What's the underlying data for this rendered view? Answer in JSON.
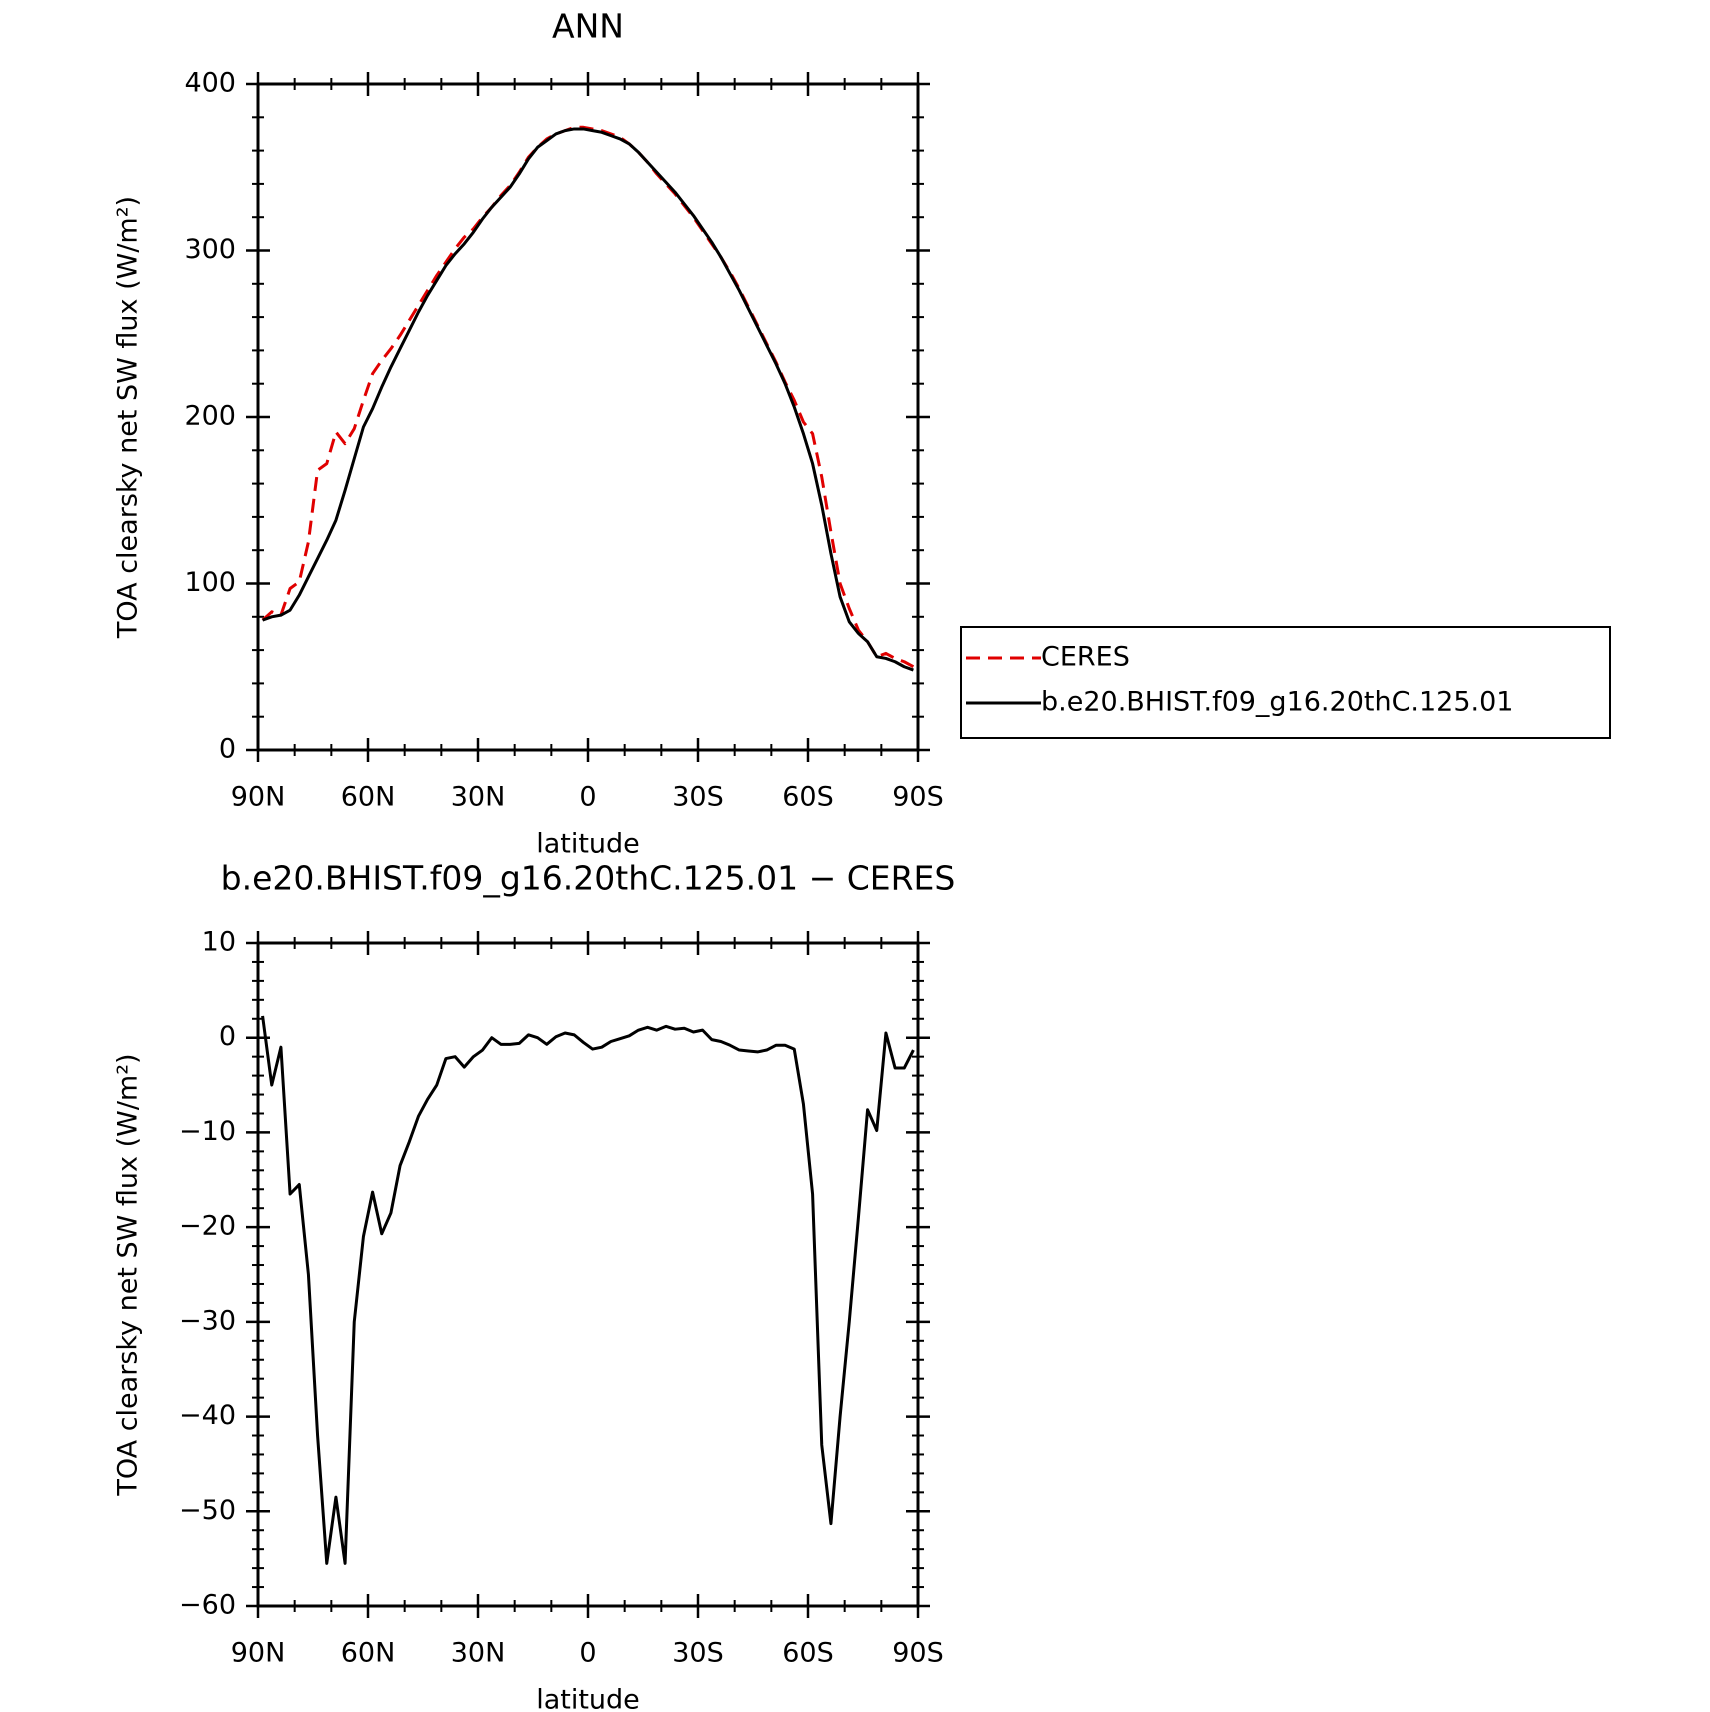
{
  "chart_data": [
    {
      "type": "line",
      "title": "ANN",
      "xlabel": "latitude",
      "ylabel": "TOA clearsky net SW flux (W/m²)",
      "x": [
        88.75,
        86.25,
        83.75,
        81.25,
        78.75,
        76.25,
        73.75,
        71.25,
        68.75,
        66.25,
        63.75,
        61.25,
        58.75,
        56.25,
        53.75,
        51.25,
        48.75,
        46.25,
        43.75,
        41.25,
        38.75,
        36.25,
        33.75,
        31.25,
        28.75,
        26.25,
        23.75,
        21.25,
        18.75,
        16.25,
        13.75,
        11.25,
        8.75,
        6.25,
        3.75,
        1.25,
        -1.25,
        -3.75,
        -6.25,
        -8.75,
        -11.25,
        -13.75,
        -16.25,
        -18.75,
        -21.25,
        -23.75,
        -26.25,
        -28.75,
        -31.25,
        -33.75,
        -36.25,
        -38.75,
        -41.25,
        -43.75,
        -46.25,
        -48.75,
        -51.25,
        -53.75,
        -56.25,
        -58.75,
        -61.25,
        -63.75,
        -66.25,
        -68.75,
        -71.25,
        -73.75,
        -76.25,
        -78.75,
        -81.25,
        -83.75,
        -86.25,
        -88.75
      ],
      "series": [
        {
          "name": "CERES",
          "color": "#e00000",
          "dash": "dashed",
          "values": [
            78,
            83,
            81,
            97,
            101,
            125,
            168,
            172,
            191,
            184,
            193,
            210,
            226,
            234,
            241,
            249,
            258,
            267,
            276,
            285,
            293,
            301,
            308,
            313,
            320,
            326,
            333,
            339,
            347,
            356,
            362,
            367,
            370,
            372,
            374,
            374,
            373,
            372,
            370,
            368,
            364,
            359,
            353,
            346,
            340,
            334,
            327,
            320,
            312,
            304,
            296,
            287,
            277,
            266,
            255,
            244,
            233,
            221,
            210,
            197,
            190,
            164,
            131,
            100,
            85,
            72,
            65,
            56,
            58,
            55,
            53,
            50
          ]
        },
        {
          "name": "b.e20.BHIST.f09_g16.20thC.125.01",
          "color": "#000000",
          "dash": "solid",
          "values": [
            78,
            80,
            81,
            84,
            93,
            104,
            115,
            126,
            138,
            156,
            175,
            194,
            205,
            218,
            230,
            241,
            252,
            263,
            273,
            282,
            291,
            298,
            304,
            311,
            319,
            326,
            332,
            338,
            346,
            355,
            362,
            366,
            370,
            372,
            373,
            373,
            372,
            371,
            369,
            367,
            364,
            359,
            353,
            347,
            341,
            335,
            328,
            321,
            313,
            305,
            296,
            286,
            276,
            265,
            254,
            243,
            232,
            220,
            206,
            190,
            172,
            147,
            118,
            92,
            77,
            70,
            65,
            56,
            55,
            53,
            50,
            48
          ]
        }
      ],
      "xlim": [
        90,
        -90
      ],
      "xticks": [
        {
          "value": 90,
          "label": "90N"
        },
        {
          "value": 60,
          "label": "60N"
        },
        {
          "value": 30,
          "label": "30N"
        },
        0,
        {
          "value": -30,
          "label": "30S"
        },
        {
          "value": -60,
          "label": "60S"
        },
        {
          "value": -90,
          "label": "90S"
        }
      ],
      "ylim": [
        0,
        400
      ],
      "yticks": [
        0,
        100,
        200,
        300,
        400
      ],
      "x_minor_divisions": 3,
      "y_minor_divisions": 5,
      "legend": "outside-right"
    },
    {
      "type": "line",
      "title": "b.e20.BHIST.f09_g16.20thC.125.01 − CERES",
      "xlabel": "latitude",
      "ylabel": "TOA clearsky net SW flux (W/m²)",
      "x": [
        88.75,
        86.25,
        83.75,
        81.25,
        78.75,
        76.25,
        73.75,
        71.25,
        68.75,
        66.25,
        63.75,
        61.25,
        58.75,
        56.25,
        53.75,
        51.25,
        48.75,
        46.25,
        43.75,
        41.25,
        38.75,
        36.25,
        33.75,
        31.25,
        28.75,
        26.25,
        23.75,
        21.25,
        18.75,
        16.25,
        13.75,
        11.25,
        8.75,
        6.25,
        3.75,
        1.25,
        -1.25,
        -3.75,
        -6.25,
        -8.75,
        -11.25,
        -13.75,
        -16.25,
        -18.75,
        -21.25,
        -23.75,
        -26.25,
        -28.75,
        -31.25,
        -33.75,
        -36.25,
        -38.75,
        -41.25,
        -43.75,
        -46.25,
        -48.75,
        -51.25,
        -53.75,
        -56.25,
        -58.75,
        -61.25,
        -63.75,
        -66.25,
        -68.75,
        -71.25,
        -73.75,
        -76.25,
        -78.75,
        -81.25,
        -83.75,
        -86.25,
        -88.75
      ],
      "series": [
        {
          "color": "#000000",
          "dash": "solid",
          "values": [
            2.3,
            -5,
            -1,
            -16.5,
            -15.5,
            -25,
            -42,
            -55.5,
            -48.5,
            -55.5,
            -30,
            -21,
            -16.3,
            -20.7,
            -18.5,
            -13.5,
            -11,
            -8.3,
            -6.5,
            -5,
            -2.2,
            -2,
            -3.1,
            -2,
            -1.3,
            0,
            -0.7,
            -0.7,
            -0.6,
            0.3,
            0,
            -0.7,
            0.1,
            0.5,
            0.3,
            -0.5,
            -1.2,
            -1,
            -0.4,
            -0.1,
            0.2,
            0.8,
            1.1,
            0.8,
            1.2,
            0.9,
            1,
            0.6,
            0.8,
            -0.2,
            -0.4,
            -0.8,
            -1.3,
            -1.4,
            -1.5,
            -1.3,
            -0.8,
            -0.8,
            -1.2,
            -7,
            -16.5,
            -43,
            -51.3,
            -40,
            -30,
            -19,
            -7.6,
            -9.8,
            0.5,
            -3.2,
            -3.2,
            -1.3
          ]
        }
      ],
      "xlim": [
        90,
        -90
      ],
      "xticks": [
        {
          "value": 90,
          "label": "90N"
        },
        {
          "value": 60,
          "label": "60N"
        },
        {
          "value": 30,
          "label": "30N"
        },
        0,
        {
          "value": -30,
          "label": "30S"
        },
        {
          "value": -60,
          "label": "60S"
        },
        {
          "value": -90,
          "label": "90S"
        }
      ],
      "ylim": [
        -60,
        10
      ],
      "yticks": [
        {
          "value": -60,
          "label": "−60"
        },
        {
          "value": -50,
          "label": "−50"
        },
        {
          "value": -40,
          "label": "−40"
        },
        {
          "value": -30,
          "label": "−30"
        },
        {
          "value": -20,
          "label": "−20"
        },
        {
          "value": -10,
          "label": "−10"
        },
        0,
        10
      ],
      "x_minor_divisions": 3,
      "y_minor_divisions": 5
    }
  ]
}
